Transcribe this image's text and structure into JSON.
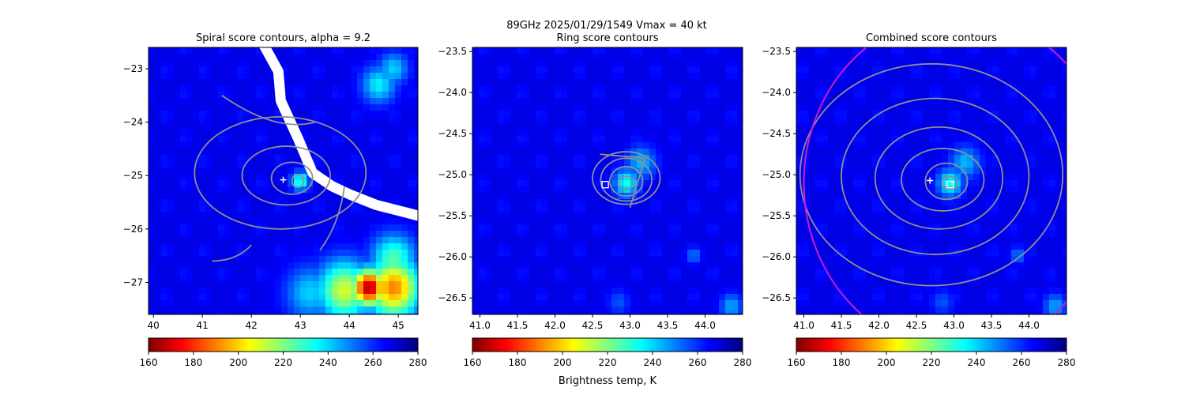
{
  "suptitle_line1": "89GHz  2025/01/29/1549    Vmax = 40 kt",
  "colorbar_label": "Brightness temp, K",
  "colormap": [
    "#7f0000",
    "#ff0000",
    "#ff7f00",
    "#ffff00",
    "#7fff7f",
    "#00ffff",
    "#007fff",
    "#0000ff",
    "#00007f"
  ],
  "contour_color": "#909090",
  "circle_color": "#d01ad0",
  "chart_data": [
    {
      "type": "heatmap",
      "title": "Spiral score contours, alpha =  9.2",
      "xlim": [
        39.9,
        45.4
      ],
      "ylim": [
        -27.6,
        -22.6
      ],
      "xticks": [
        40,
        41,
        42,
        43,
        44,
        45
      ],
      "yticks": [
        -23,
        -24,
        -25,
        -26,
        -27
      ],
      "colorbar": {
        "vmin": 160,
        "vmax": 280,
        "ticks": [
          160,
          180,
          200,
          220,
          240,
          260,
          280
        ]
      },
      "markers": [
        {
          "kind": "plus",
          "x": 42.65,
          "y": -25.08
        }
      ],
      "cold_spots": [
        {
          "x": 43.0,
          "y": -25.1,
          "t": 228,
          "r": 0.18
        },
        {
          "x": 44.6,
          "y": -23.3,
          "t": 236,
          "r": 0.35
        },
        {
          "x": 44.9,
          "y": -23.0,
          "t": 240,
          "r": 0.3
        },
        {
          "x": 44.4,
          "y": -27.1,
          "t": 165,
          "r": 0.35
        },
        {
          "x": 44.9,
          "y": -27.1,
          "t": 190,
          "r": 0.55
        },
        {
          "x": 43.9,
          "y": -27.15,
          "t": 210,
          "r": 0.55
        },
        {
          "x": 43.2,
          "y": -27.2,
          "t": 240,
          "r": 0.5
        },
        {
          "x": 44.9,
          "y": -26.55,
          "t": 225,
          "r": 0.45
        }
      ],
      "missing_swath": [
        [
          42.25,
          -22.55
        ],
        [
          42.55,
          -23.05
        ],
        [
          42.6,
          -23.6
        ],
        [
          42.95,
          -24.3
        ],
        [
          43.25,
          -24.95
        ],
        [
          43.65,
          -25.2
        ],
        [
          44.0,
          -25.35
        ],
        [
          44.55,
          -25.55
        ],
        [
          45.4,
          -25.75
        ]
      ]
    },
    {
      "type": "heatmap",
      "title": "Ring score contours",
      "xlim": [
        40.9,
        44.5
      ],
      "ylim": [
        -26.7,
        -23.45
      ],
      "xticks": [
        41.0,
        41.5,
        42.0,
        42.5,
        43.0,
        43.5,
        44.0
      ],
      "yticks": [
        -23.5,
        -24.0,
        -24.5,
        -25.0,
        -25.5,
        -26.0,
        -26.5
      ],
      "colorbar": {
        "vmin": 160,
        "vmax": 280,
        "ticks": [
          160,
          180,
          200,
          220,
          240,
          260,
          280
        ]
      },
      "markers": [
        {
          "kind": "square",
          "x": 42.67,
          "y": -25.12
        }
      ],
      "cold_spots": [
        {
          "x": 42.95,
          "y": -25.1,
          "t": 232,
          "r": 0.17
        },
        {
          "x": 43.15,
          "y": -24.85,
          "t": 243,
          "r": 0.2
        },
        {
          "x": 43.85,
          "y": -25.98,
          "t": 250,
          "r": 0.1
        },
        {
          "x": 42.85,
          "y": -26.55,
          "t": 255,
          "r": 0.15
        },
        {
          "x": 44.35,
          "y": -26.6,
          "t": 245,
          "r": 0.15
        }
      ]
    },
    {
      "type": "heatmap",
      "title": "Combined score contours",
      "xlim": [
        40.9,
        44.5
      ],
      "ylim": [
        -26.7,
        -23.45
      ],
      "xticks": [
        41.0,
        41.5,
        42.0,
        42.5,
        43.0,
        43.5,
        44.0
      ],
      "yticks": [
        -23.5,
        -24.0,
        -24.5,
        -25.0,
        -25.5,
        -26.0,
        -26.5
      ],
      "colorbar": {
        "vmin": 160,
        "vmax": 280,
        "ticks": [
          160,
          180,
          200,
          220,
          240,
          260,
          280
        ]
      },
      "markers": [
        {
          "kind": "plus",
          "x": 42.68,
          "y": -25.07
        },
        {
          "kind": "square",
          "x": 42.95,
          "y": -25.12
        }
      ],
      "circle": {
        "x": 43.05,
        "y": -25.1,
        "r": 2.05
      },
      "cold_spots": [
        {
          "x": 42.95,
          "y": -25.1,
          "t": 232,
          "r": 0.17
        },
        {
          "x": 43.15,
          "y": -24.85,
          "t": 243,
          "r": 0.2
        },
        {
          "x": 43.85,
          "y": -25.98,
          "t": 250,
          "r": 0.1
        },
        {
          "x": 42.85,
          "y": -26.55,
          "t": 255,
          "r": 0.15
        },
        {
          "x": 44.35,
          "y": -26.6,
          "t": 245,
          "r": 0.15
        }
      ]
    }
  ]
}
